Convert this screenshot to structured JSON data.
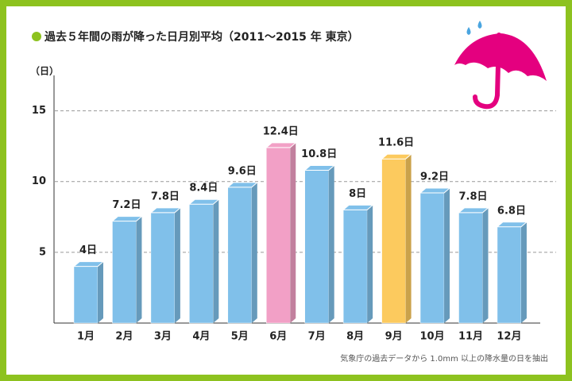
{
  "chart_data": {
    "type": "bar3d",
    "title": "過去５年間の雨が降った日月別平均（2011～2015 年 東京）",
    "y_label": "（日）",
    "note": "気象庁の過去データから 1.0mm 以上の降水量の日を抽出",
    "categories": [
      "1月",
      "2月",
      "3月",
      "4月",
      "5月",
      "6月",
      "7月",
      "8月",
      "9月",
      "10月",
      "11月",
      "12月"
    ],
    "values": [
      4,
      7.2,
      7.8,
      8.4,
      9.6,
      12.4,
      10.8,
      8,
      11.6,
      9.2,
      7.8,
      6.8
    ],
    "value_labels": [
      "4日",
      "7.2日",
      "7.8日",
      "8.4日",
      "9.6日",
      "12.4日",
      "10.8日",
      "8日",
      "11.6日",
      "9.2日",
      "7.8日",
      "6.8日"
    ],
    "colors": [
      "#80c0ea",
      "#80c0ea",
      "#80c0ea",
      "#80c0ea",
      "#80c0ea",
      "#f2a0c6",
      "#80c0ea",
      "#80c0ea",
      "#fcca5e",
      "#80c0ea",
      "#80c0ea",
      "#80c0ea"
    ],
    "ylim": [
      0,
      17.5
    ],
    "yticks": [
      5,
      10,
      15
    ],
    "grid": true
  }
}
